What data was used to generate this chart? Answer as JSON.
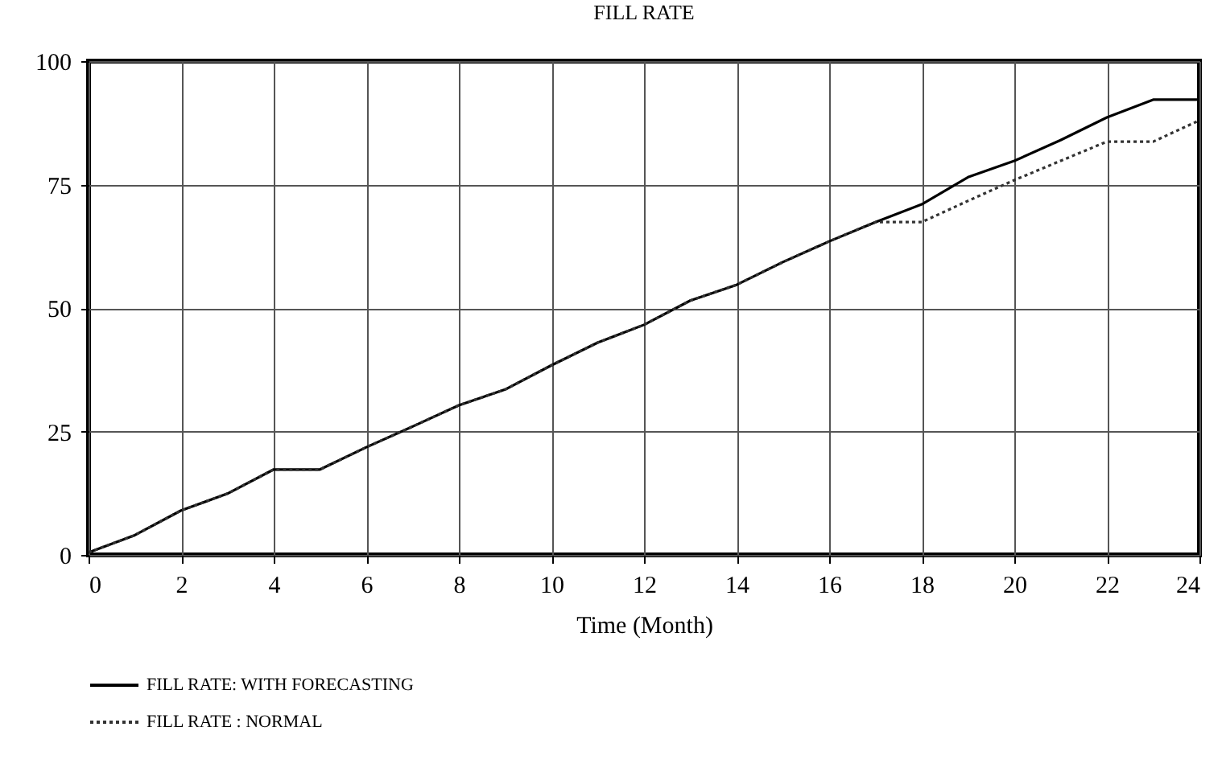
{
  "chart_data": {
    "type": "line",
    "title": "FILL RATE",
    "xlabel": "Time (Month)",
    "x": [
      0,
      1,
      2,
      3,
      4,
      5,
      6,
      7,
      8,
      9,
      10,
      11,
      12,
      13,
      14,
      15,
      16,
      17,
      18,
      19,
      20,
      21,
      22,
      23,
      24
    ],
    "series": [
      {
        "name": "FILL RATE: WITH FORECASTING",
        "color": "#000000",
        "line_style": "solid",
        "values": [
          0.5,
          4,
          9,
          12.4,
          17.3,
          17.3,
          21.8,
          26,
          30.3,
          33.5,
          38.4,
          43,
          46.6,
          51.5,
          54.7,
          59.3,
          63.5,
          67.4,
          71,
          76.5,
          79.8,
          84,
          88.6,
          92.2,
          92.2
        ]
      },
      {
        "name": "FILL RATE : NORMAL",
        "color": "#333333",
        "line_style": "dotted",
        "values": [
          0.5,
          4,
          9,
          12.4,
          17.3,
          17.3,
          21.8,
          26,
          30.3,
          33.5,
          38.4,
          43,
          46.6,
          51.5,
          54.7,
          59.3,
          63.5,
          67.4,
          67.4,
          71.7,
          75.9,
          79.8,
          83.7,
          83.7,
          88
        ]
      }
    ],
    "xlim": [
      0,
      24
    ],
    "xticks": [
      0,
      2,
      4,
      6,
      8,
      10,
      12,
      14,
      16,
      18,
      20,
      22,
      24
    ],
    "ylim": [
      0,
      100
    ],
    "yticks": [
      0,
      25,
      50,
      75,
      100
    ],
    "grid": true,
    "legend": "bottom"
  }
}
